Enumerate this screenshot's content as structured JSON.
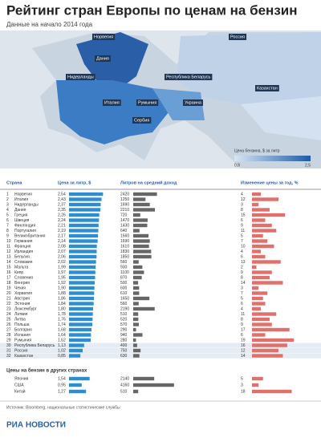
{
  "header": {
    "title": "Рейтинг стран Европы по ценам на бензин",
    "subtitle": "Данные на начало 2014 года"
  },
  "map": {
    "labels": [
      "Норвегия",
      "Россия",
      "Дания",
      "Нидерланды",
      "Республика Беларусь",
      "Казахстан",
      "Италия",
      "Румыния",
      "Украина",
      "Сербия"
    ],
    "legend": {
      "title": "Цена бензина, $ за литр",
      "min": "0,8",
      "max": "2,5"
    }
  },
  "table": {
    "columns": [
      "Страна",
      "Цена за литр, $",
      "Литров на средний доход",
      "Изменение цены за год, %"
    ],
    "rows": [
      {
        "rank": 1,
        "country": "Норвегия",
        "price": {
          "value": 2.54,
          "label": "2,54"
        },
        "liters": 2420,
        "change": 4
      },
      {
        "rank": 2,
        "country": "Италия",
        "price": {
          "value": 2.43,
          "label": "2,43"
        },
        "liters": 1250,
        "change": 12
      },
      {
        "rank": 3,
        "country": "Нидерланды",
        "price": {
          "value": 2.37,
          "label": "2,37"
        },
        "liters": 1690,
        "change": 3
      },
      {
        "rank": 4,
        "country": "Дания",
        "price": {
          "value": 2.35,
          "label": "2,35"
        },
        "liters": 2210,
        "change": 8
      },
      {
        "rank": 5,
        "country": "Греция",
        "price": {
          "value": 2.26,
          "label": "2,26"
        },
        "liters": 720,
        "change": 15
      },
      {
        "rank": 6,
        "country": "Швеция",
        "price": {
          "value": 2.24,
          "label": "2,24"
        },
        "liters": 1470,
        "change": 6
      },
      {
        "rank": 7,
        "country": "Финляндия",
        "price": {
          "value": 2.21,
          "label": "2,21"
        },
        "liters": 1430,
        "change": 9
      },
      {
        "rank": 8,
        "country": "Португалия",
        "price": {
          "value": 2.19,
          "label": "2,19"
        },
        "liters": 640,
        "change": 11
      },
      {
        "rank": 9,
        "country": "Великобритания",
        "price": {
          "value": 2.17,
          "label": "2,17"
        },
        "liters": 1560,
        "change": 5
      },
      {
        "rank": 10,
        "country": "Германия",
        "price": {
          "value": 2.14,
          "label": "2,14"
        },
        "liters": 1690,
        "change": 7
      },
      {
        "rank": 11,
        "country": "Франция",
        "price": {
          "value": 2.08,
          "label": "2,08"
        },
        "liters": 1610,
        "change": 10
      },
      {
        "rank": 12,
        "country": "Ирландия",
        "price": {
          "value": 2.07,
          "label": "2,07"
        },
        "liters": 1830,
        "change": 4
      },
      {
        "rank": 13,
        "country": "Бельгия",
        "price": {
          "value": 2.06,
          "label": "2,06"
        },
        "liters": 1850,
        "change": 6
      },
      {
        "rank": 14,
        "country": "Словакия",
        "price": {
          "value": 2.02,
          "label": "2,02"
        },
        "liters": 560,
        "change": 13
      },
      {
        "rank": 15,
        "country": "Мальта",
        "price": {
          "value": 1.99,
          "label": "1,99"
        },
        "liters": 930,
        "change": 2
      },
      {
        "rank": 16,
        "country": "Кипр",
        "price": {
          "value": 1.97,
          "label": "1,97"
        },
        "liters": 1100,
        "change": 9
      },
      {
        "rank": 17,
        "country": "Словения",
        "price": {
          "value": 1.95,
          "label": "1,95"
        },
        "liters": 870,
        "change": 8
      },
      {
        "rank": 18,
        "country": "Венгрия",
        "price": {
          "value": 1.92,
          "label": "1,92"
        },
        "liters": 500,
        "change": 14
      },
      {
        "rank": 19,
        "country": "Чехия",
        "price": {
          "value": 1.9,
          "label": "1,90"
        },
        "liters": 600,
        "change": 3
      },
      {
        "rank": 20,
        "country": "Хорватия",
        "price": {
          "value": 1.88,
          "label": "1,88"
        },
        "liters": 610,
        "change": 7
      },
      {
        "rank": 21,
        "country": "Австрия",
        "price": {
          "value": 1.86,
          "label": "1,86"
        },
        "liters": 1650,
        "change": 5
      },
      {
        "rank": 22,
        "country": "Эстония",
        "price": {
          "value": 1.84,
          "label": "1,84"
        },
        "liters": 560,
        "change": 6
      },
      {
        "rank": 23,
        "country": "Люксембург",
        "price": {
          "value": 1.8,
          "label": "1,80"
        },
        "liters": 2190,
        "change": 4
      },
      {
        "rank": 24,
        "country": "Латвия",
        "price": {
          "value": 1.78,
          "label": "1,78"
        },
        "liters": 510,
        "change": 11
      },
      {
        "rank": 25,
        "country": "Литва",
        "price": {
          "value": 1.76,
          "label": "1,76"
        },
        "liters": 520,
        "change": 8
      },
      {
        "rank": 26,
        "country": "Польша",
        "price": {
          "value": 1.74,
          "label": "1,74"
        },
        "liters": 570,
        "change": 9
      },
      {
        "rank": 27,
        "country": "Болгария",
        "price": {
          "value": 1.68,
          "label": "1,68"
        },
        "liters": 290,
        "change": 17
      },
      {
        "rank": 28,
        "country": "Испания",
        "price": {
          "value": 1.64,
          "label": "1,64"
        },
        "liters": 940,
        "change": 6
      },
      {
        "rank": 29,
        "country": "Румыния",
        "price": {
          "value": 1.62,
          "label": "1,62"
        },
        "liters": 280,
        "change": 19
      },
      {
        "rank": 30,
        "country": "Республика Беларусь",
        "price": {
          "value": 1.13,
          "label": "1,13"
        },
        "liters": 400,
        "change": 16
      },
      {
        "rank": 31,
        "country": "Россия",
        "price": {
          "value": 1.02,
          "label": "1,02"
        },
        "liters": 750,
        "change": 12
      },
      {
        "rank": 32,
        "country": "Казахстан",
        "price": {
          "value": 0.85,
          "label": "0,85"
        },
        "liters": 630,
        "change": 14
      }
    ]
  },
  "other": {
    "title": "Цены на бензин в других странах",
    "rows": [
      {
        "country": "Япония",
        "price": {
          "value": 1.54,
          "label": "1,54"
        },
        "liters": 2140,
        "change": 5
      },
      {
        "country": "США",
        "price": {
          "value": 0.95,
          "label": "0,95"
        },
        "liters": 4160,
        "change": 3
      },
      {
        "country": "Китай",
        "price": {
          "value": 1.27,
          "label": "1,27"
        },
        "liters": 510,
        "change": 18
      }
    ]
  },
  "footer": {
    "source": "Источник: Bloomberg, национальные статистические службы",
    "logo": "РИА НОВОСТИ"
  }
}
